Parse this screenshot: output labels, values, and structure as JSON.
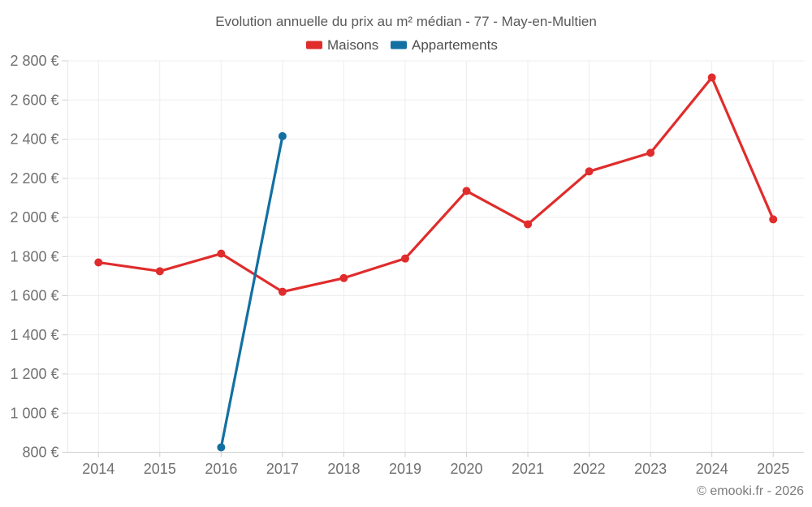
{
  "header": {
    "title": "Evolution annuelle du prix au m² médian - 77 - May-en-Multien"
  },
  "footer": {
    "copyright": "© emooki.fr - 2026"
  },
  "colors": {
    "maisons": "#e02c2c",
    "appartements": "#1270a2",
    "grid": "#ededed",
    "axis": "#cfcfcf",
    "label_text": "#6f6f6f"
  },
  "chart_data": {
    "type": "line",
    "title": "Evolution annuelle du prix au m² médian - 77 - May-en-Multien",
    "categories": [
      "2014",
      "2015",
      "2016",
      "2017",
      "2018",
      "2019",
      "2020",
      "2021",
      "2022",
      "2023",
      "2024",
      "2025"
    ],
    "series": [
      {
        "name": "Maisons",
        "color": "#e02c2c",
        "values": [
          1770,
          1725,
          1815,
          1620,
          1690,
          1790,
          2135,
          1965,
          2235,
          2330,
          2715,
          1990
        ]
      },
      {
        "name": "Appartements",
        "color": "#1270a2",
        "values": [
          null,
          null,
          825,
          2415,
          null,
          null,
          null,
          null,
          null,
          null,
          null,
          null
        ]
      }
    ],
    "xlabel": "",
    "ylabel": "",
    "ylim": [
      800,
      2800
    ],
    "ytick_values": [
      800,
      1000,
      1200,
      1400,
      1600,
      1800,
      2000,
      2200,
      2400,
      2600,
      2800
    ],
    "ytick_labels": [
      "800 €",
      "1 000 €",
      "1 200 €",
      "1 400 €",
      "1 600 €",
      "1 800 €",
      "2 000 €",
      "2 200 €",
      "2 400 €",
      "2 600 €",
      "2 800 €"
    ],
    "currency_suffix": " €",
    "legend": [
      "Maisons",
      "Appartements"
    ],
    "legend_position": "top-center",
    "grid": true,
    "marker": "circle"
  }
}
